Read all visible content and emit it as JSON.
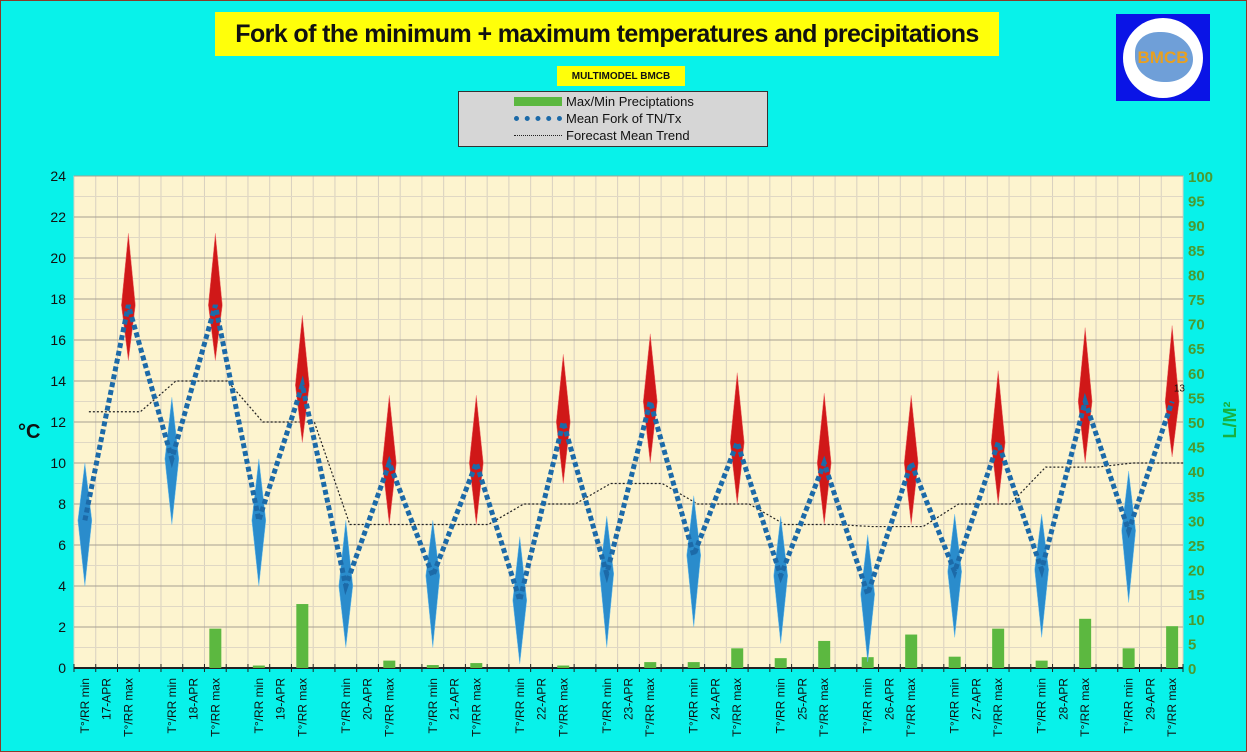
{
  "header": {
    "title": "Fork of the minimum + maximum temperatures and precipitations",
    "subtitle": "MULTIMODEL BMCB",
    "logo_text": "BMCB"
  },
  "chart_data": {
    "type": "line",
    "title": "Fork of the minimum + maximum temperatures and precipitations",
    "subtitle": "MULTIMODEL BMCB",
    "ylabel": "°C",
    "y2label": "L/M²",
    "ylim": [
      0,
      24
    ],
    "y2lim": [
      0,
      100
    ],
    "yticks": [
      "0",
      "2",
      "4",
      "6",
      "8",
      "10",
      "12",
      "14",
      "16",
      "18",
      "20",
      "22",
      "24"
    ],
    "y2ticks": [
      "0",
      "5",
      "10",
      "15",
      "20",
      "25",
      "30",
      "35",
      "40",
      "45",
      "50",
      "55",
      "60",
      "65",
      "70",
      "75",
      "80",
      "85",
      "90",
      "95",
      "100"
    ],
    "grid": true,
    "legend": [
      {
        "label": "Max/Min Preciptations",
        "color": "#5cb840"
      },
      {
        "label": "Mean Fork of TN/Tx",
        "color": "#1c6aa8"
      },
      {
        "label": "Forecast Mean Trend",
        "color": "#222222"
      }
    ],
    "slot_label_min": "T°/RR min",
    "slot_label_max": "T°/RR max",
    "days": [
      "17-APR",
      "18-APR",
      "19-APR",
      "20-APR",
      "21-APR",
      "22-APR",
      "23-APR",
      "24-APR",
      "25-APR",
      "26-APR",
      "27-APR",
      "28-APR",
      "29-APR"
    ],
    "tmin_mean": [
      7.2,
      10.2,
      7.2,
      4.0,
      4.5,
      3.3,
      4.6,
      5.5,
      4.5,
      3.6,
      4.7,
      4.8,
      6.7
    ],
    "tmax_mean": [
      17.7,
      17.7,
      13.8,
      10.0,
      10.0,
      12.0,
      13.0,
      11.0,
      10.0,
      10.0,
      11.0,
      13.0,
      13.0
    ],
    "tmin_range": [
      [
        4,
        10
      ],
      [
        7,
        13.2
      ],
      [
        4,
        10.2
      ],
      [
        1,
        7.2
      ],
      [
        1,
        7.2
      ],
      [
        0.2,
        6.4
      ],
      [
        1,
        7.4
      ],
      [
        2,
        8.4
      ],
      [
        1.2,
        7.4
      ],
      [
        0.3,
        6.5
      ],
      [
        1.5,
        7.5
      ],
      [
        1.5,
        7.5
      ],
      [
        3.2,
        9.6
      ]
    ],
    "tmax_range": [
      [
        15,
        21.2
      ],
      [
        15,
        21.2
      ],
      [
        11,
        17.2
      ],
      [
        7,
        13.3
      ],
      [
        7,
        13.3
      ],
      [
        9,
        15.3
      ],
      [
        10,
        16.3
      ],
      [
        8,
        14.4
      ],
      [
        7,
        13.4
      ],
      [
        7,
        13.3
      ],
      [
        8,
        14.5
      ],
      [
        10,
        16.6
      ],
      [
        10.3,
        16.7
      ]
    ],
    "precip_min": [
      0,
      0,
      0.5,
      0,
      0.6,
      0,
      0,
      1.2,
      2,
      2.2,
      2.3,
      1.5,
      4
    ],
    "precip_max": [
      0,
      8,
      13,
      1.5,
      1.0,
      0.5,
      1.2,
      4,
      5.5,
      6.8,
      8,
      10,
      8.5
    ],
    "trend": [
      12.5,
      14,
      12,
      7,
      7,
      8,
      9,
      8,
      7,
      6.9,
      8,
      9.8,
      10
    ],
    "annotation": "13"
  }
}
